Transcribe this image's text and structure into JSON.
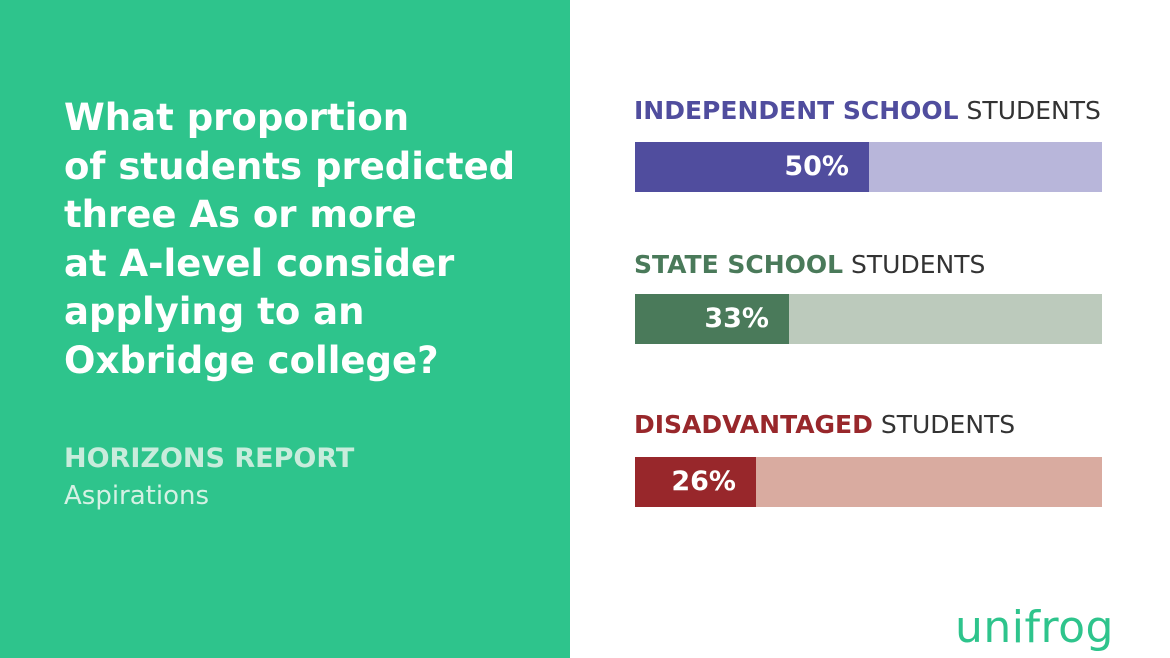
{
  "question": {
    "lines": [
      "What proportion",
      "of students predicted",
      "three As or more",
      "at A-level consider",
      "applying to an",
      "Oxbridge college?"
    ]
  },
  "report": {
    "title": "HORIZONS REPORT",
    "subtitle": "Aspirations"
  },
  "brand": {
    "logo_text": "unifrog",
    "color": "#2ec48c"
  },
  "colors": {
    "panel": "#2ec48c"
  },
  "chart_data": {
    "type": "bar",
    "orientation": "horizontal",
    "unit": "%",
    "xlim": [
      0,
      100
    ],
    "categories": [
      "INDEPENDENT SCHOOL STUDENTS",
      "STATE SCHOOL STUDENTS",
      "DISADVANTAGED STUDENTS"
    ],
    "values": [
      50,
      33,
      26
    ],
    "groups": [
      {
        "strong": "INDEPENDENT SCHOOL",
        "rest": "STUDENTS",
        "value": 50,
        "value_label": "50%",
        "fill_color": "#504d9e",
        "track_color": "#b8b6da"
      },
      {
        "strong": "STATE SCHOOL",
        "rest": "STUDENTS",
        "value": 33,
        "value_label": "33%",
        "fill_color": "#4a7a5a",
        "track_color": "#bccabc"
      },
      {
        "strong": "DISADVANTAGED",
        "rest": "STUDENTS",
        "value": 26,
        "value_label": "26%",
        "fill_color": "#98272b",
        "track_color": "#d9aba0"
      }
    ]
  }
}
